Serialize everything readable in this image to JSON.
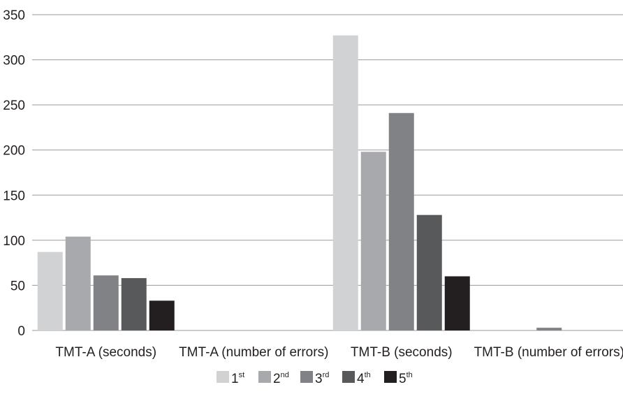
{
  "chart_data": {
    "type": "bar",
    "categories": [
      "TMT-A (seconds)",
      "TMT-A (number of errors)",
      "TMT-B (seconds)",
      "TMT-B (number of errors)"
    ],
    "series": [
      {
        "name": "1st",
        "label_main": "1",
        "label_sup": "st",
        "color": "#d1d2d4",
        "values": [
          87,
          0,
          327,
          0
        ]
      },
      {
        "name": "2nd",
        "label_main": "2",
        "label_sup": "nd",
        "color": "#a7a9ac",
        "values": [
          104,
          0,
          198,
          0
        ]
      },
      {
        "name": "3rd",
        "label_main": "3",
        "label_sup": "rd",
        "color": "#808285",
        "values": [
          61,
          0,
          241,
          3
        ]
      },
      {
        "name": "4th",
        "label_main": "4",
        "label_sup": "th",
        "color": "#58595b",
        "values": [
          58,
          0,
          128,
          0
        ]
      },
      {
        "name": "5th",
        "label_main": "5",
        "label_sup": "th",
        "color": "#231f20",
        "values": [
          33,
          0,
          60,
          0
        ]
      }
    ],
    "yticks": [
      "0",
      "50",
      "100",
      "150",
      "200",
      "250",
      "300",
      "350"
    ],
    "ylim": [
      0,
      350
    ],
    "title": "",
    "xlabel": "",
    "ylabel": "",
    "grid": true,
    "legend_position": "bottom-center"
  }
}
